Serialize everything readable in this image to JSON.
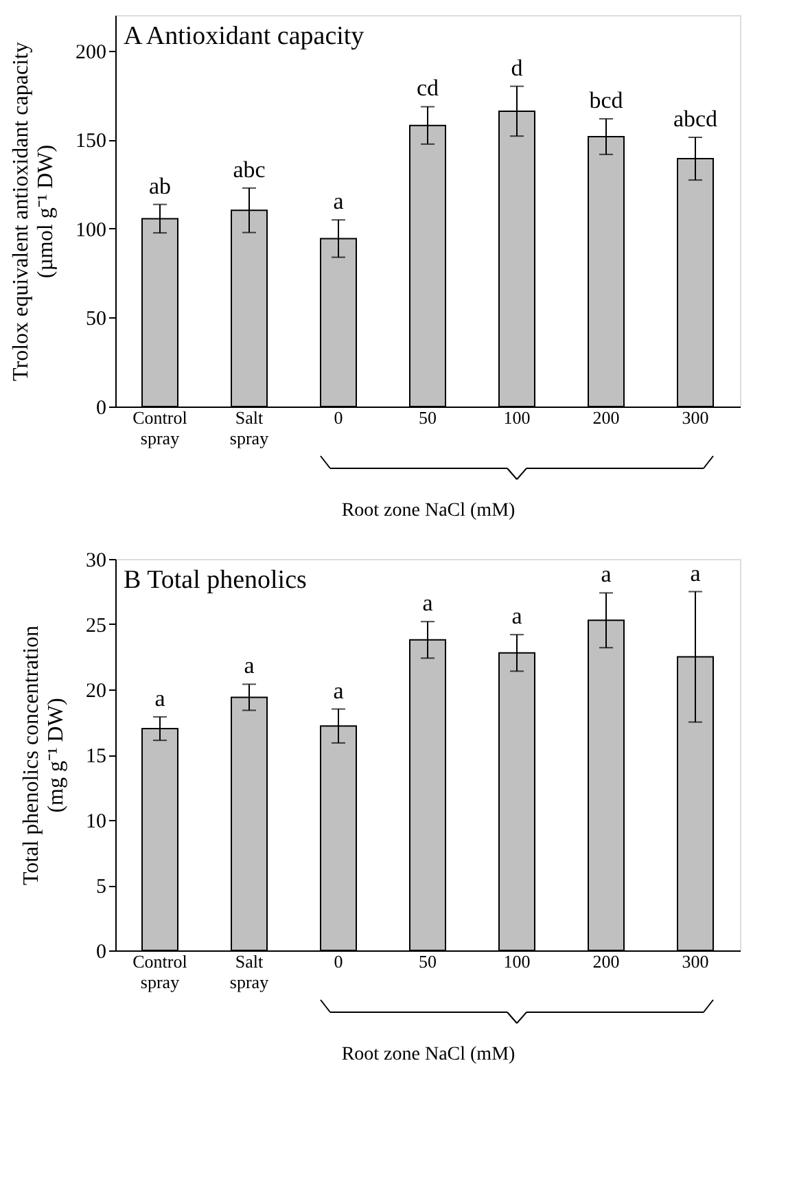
{
  "chart_data": [
    {
      "type": "bar",
      "title": "A  Antioxidant capacity",
      "xlabel": "Root zone NaCl (mM)",
      "ylabel": "Trolox equivalent antioxidant capacity\n(µmol g⁻¹ DW)",
      "categories": [
        "Control\nspray",
        "Salt\nspray",
        "0",
        "50",
        "100",
        "200",
        "300"
      ],
      "values": [
        105.6,
        110.3,
        94.4,
        158,
        166,
        151.7,
        139.3
      ],
      "errors": [
        8,
        12.5,
        10.5,
        10.5,
        14,
        10,
        12
      ],
      "value_labels": [
        "ab",
        "abc",
        "a",
        "cd",
        "d",
        "bcd",
        "abcd"
      ],
      "color": "#c0c0c0",
      "ylim": [
        0,
        220
      ],
      "yticks": [
        0,
        50,
        100,
        150,
        200
      ]
    },
    {
      "type": "bar",
      "title": "B  Total phenolics",
      "xlabel": "Root zone NaCl (mM)",
      "ylabel": "Total phenolics concentration\n(mg g⁻¹ DW)",
      "categories": [
        "Control\nspray",
        "Salt\nspray",
        "0",
        "50",
        "100",
        "200",
        "300"
      ],
      "values": [
        17.0,
        19.4,
        17.2,
        23.8,
        22.8,
        25.3,
        22.5
      ],
      "errors": [
        0.9,
        1.0,
        1.3,
        1.4,
        1.4,
        2.1,
        5.0
      ],
      "value_labels": [
        "a",
        "a",
        "a",
        "a",
        "a",
        "a",
        "a"
      ],
      "color": "#c0c0c0",
      "ylim": [
        0,
        30
      ],
      "yticks": [
        0,
        5,
        10,
        15,
        20,
        25,
        30
      ]
    }
  ]
}
